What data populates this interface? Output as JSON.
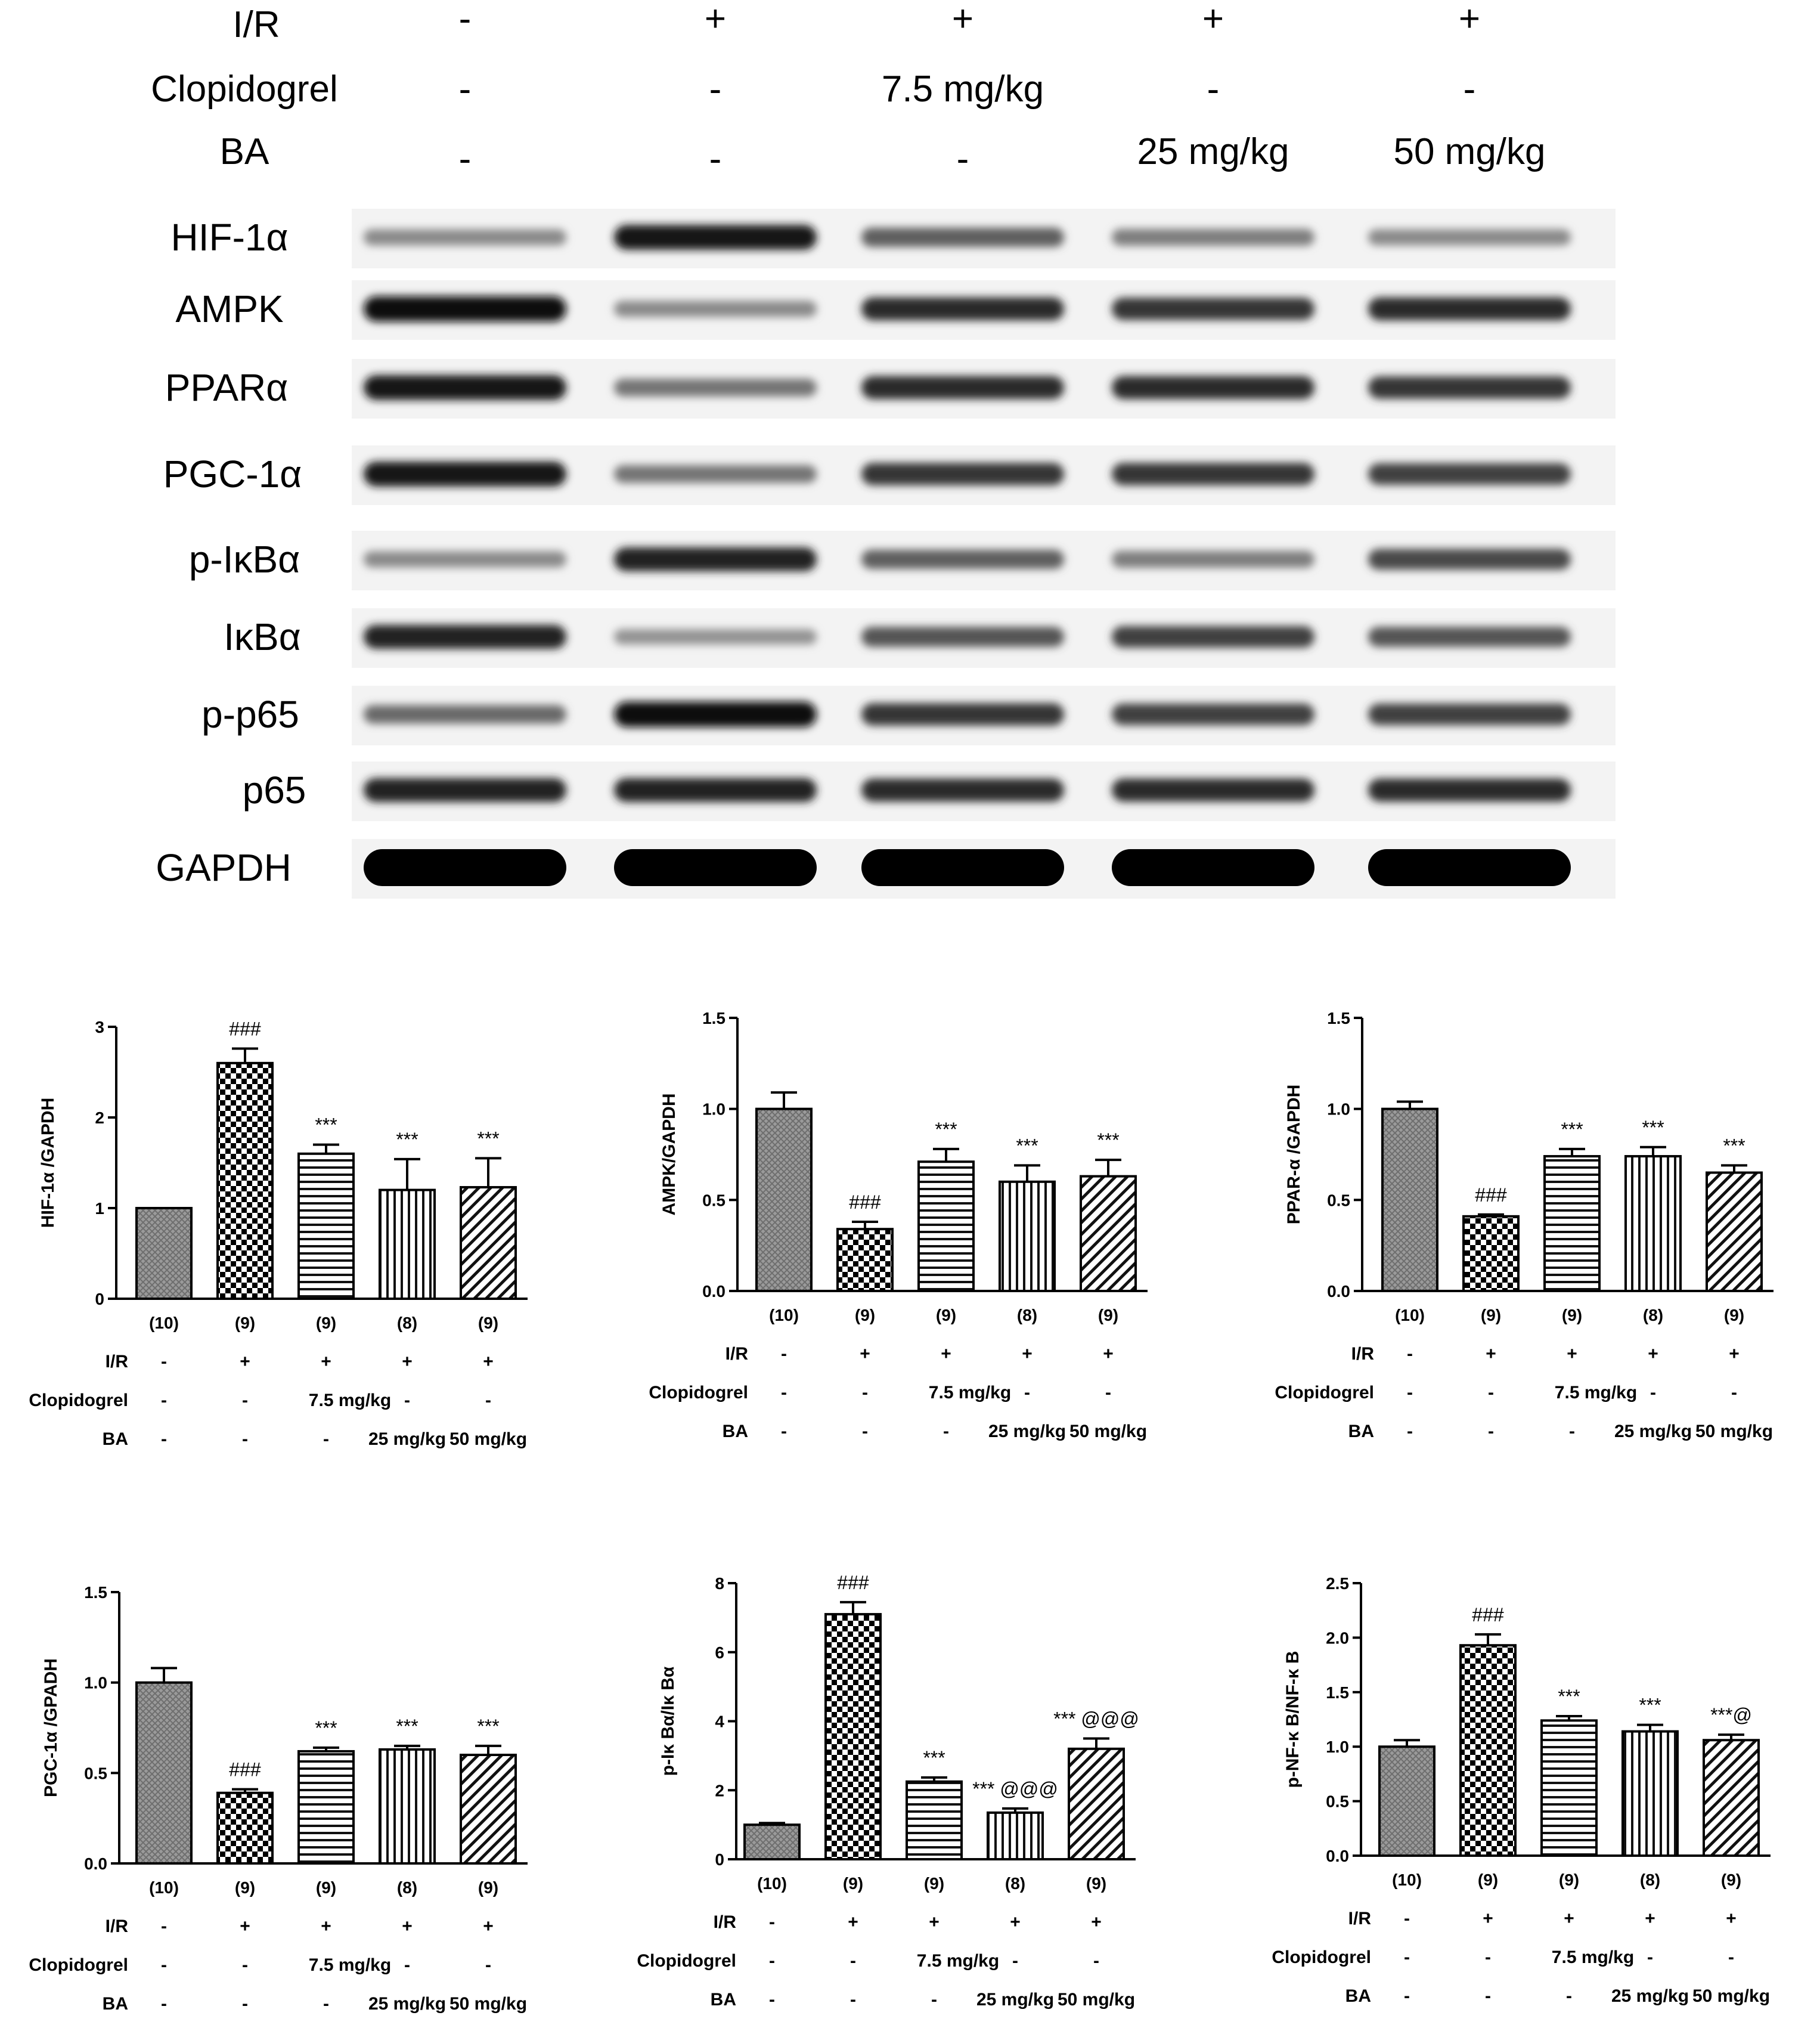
{
  "blot": {
    "header_rows": [
      {
        "label": "I/R",
        "values": [
          "-",
          "+",
          "+",
          "+",
          "+"
        ]
      },
      {
        "label": "Clopidogrel",
        "values": [
          "-",
          "-",
          "7.5 mg/kg",
          "-",
          "-"
        ]
      },
      {
        "label": "BA",
        "values": [
          "-",
          "-",
          "-",
          "25 mg/kg",
          "50 mg/kg"
        ]
      }
    ],
    "bands": [
      {
        "label": "HIF-1α",
        "intensity": [
          0.35,
          0.9,
          0.55,
          0.4,
          0.35
        ]
      },
      {
        "label": "AMPK",
        "intensity": [
          0.95,
          0.35,
          0.8,
          0.75,
          0.8
        ]
      },
      {
        "label": "PPARα",
        "intensity": [
          0.9,
          0.45,
          0.8,
          0.8,
          0.75
        ]
      },
      {
        "label": "PGC-1α",
        "intensity": [
          0.9,
          0.45,
          0.75,
          0.75,
          0.7
        ]
      },
      {
        "label": "p-IκBα",
        "intensity": [
          0.35,
          0.85,
          0.55,
          0.4,
          0.65
        ]
      },
      {
        "label": "IκBα",
        "intensity": [
          0.85,
          0.3,
          0.6,
          0.7,
          0.6
        ]
      },
      {
        "label": "p-p65",
        "intensity": [
          0.5,
          0.95,
          0.75,
          0.7,
          0.7
        ]
      },
      {
        "label": "p65",
        "intensity": [
          0.85,
          0.85,
          0.8,
          0.8,
          0.8
        ]
      },
      {
        "label": "GAPDH",
        "intensity": [
          1.0,
          1.0,
          1.0,
          1.0,
          1.0
        ]
      }
    ]
  },
  "chart_data": [
    {
      "type": "bar",
      "ylabel": "HIF-1α /GAPDH",
      "ylim": [
        0,
        3
      ],
      "yticks": [
        "0",
        "1",
        "2",
        "3"
      ],
      "categories": [
        "(10)",
        "(9)",
        "(9)",
        "(8)",
        "(9)"
      ],
      "values": [
        1.0,
        2.6,
        1.6,
        1.2,
        1.23
      ],
      "errors": [
        0.0,
        0.16,
        0.1,
        0.34,
        0.32
      ],
      "annotations": [
        "",
        "###",
        "***",
        "***",
        "***"
      ],
      "conditions": [
        {
          "label": "I/R",
          "values": [
            "-",
            "+",
            "+",
            "+",
            "+"
          ]
        },
        {
          "label": "Clopidogrel",
          "values": [
            "-",
            "-",
            "7.5 mg/kg",
            "-",
            "-"
          ]
        },
        {
          "label": "BA",
          "values": [
            "-",
            "-",
            "-",
            "25 mg/kg",
            "50 mg/kg"
          ]
        }
      ]
    },
    {
      "type": "bar",
      "ylabel": "AMPK/GAPDH",
      "ylim": [
        0,
        1.5
      ],
      "yticks": [
        "0.0",
        "0.5",
        "1.0",
        "1.5"
      ],
      "categories": [
        "(10)",
        "(9)",
        "(9)",
        "(8)",
        "(9)"
      ],
      "values": [
        1.0,
        0.34,
        0.71,
        0.6,
        0.63
      ],
      "errors": [
        0.09,
        0.04,
        0.07,
        0.09,
        0.09
      ],
      "annotations": [
        "",
        "###",
        "***",
        "***",
        "***"
      ],
      "conditions": [
        {
          "label": "I/R",
          "values": [
            "-",
            "+",
            "+",
            "+",
            "+"
          ]
        },
        {
          "label": "Clopidogrel",
          "values": [
            "-",
            "-",
            "7.5 mg/kg",
            "-",
            "-"
          ]
        },
        {
          "label": "BA",
          "values": [
            "-",
            "-",
            "-",
            "25 mg/kg",
            "50 mg/kg"
          ]
        }
      ]
    },
    {
      "type": "bar",
      "ylabel": "PPAR-α /GAPDH",
      "ylim": [
        0,
        1.5
      ],
      "yticks": [
        "0.0",
        "0.5",
        "1.0",
        "1.5"
      ],
      "categories": [
        "(10)",
        "(9)",
        "(9)",
        "(8)",
        "(9)"
      ],
      "values": [
        1.0,
        0.41,
        0.74,
        0.74,
        0.65
      ],
      "errors": [
        0.04,
        0.01,
        0.04,
        0.05,
        0.04
      ],
      "annotations": [
        "",
        "###",
        "***",
        "***",
        "***"
      ],
      "conditions": [
        {
          "label": "I/R",
          "values": [
            "-",
            "+",
            "+",
            "+",
            "+"
          ]
        },
        {
          "label": "Clopidogrel",
          "values": [
            "-",
            "-",
            "7.5 mg/kg",
            "-",
            "-"
          ]
        },
        {
          "label": "BA",
          "values": [
            "-",
            "-",
            "-",
            "25 mg/kg",
            "50 mg/kg"
          ]
        }
      ]
    },
    {
      "type": "bar",
      "ylabel": "PGC-1α /GPADH",
      "ylim": [
        0,
        1.5
      ],
      "yticks": [
        "0.0",
        "0.5",
        "1.0",
        "1.5"
      ],
      "categories": [
        "(10)",
        "(9)",
        "(9)",
        "(8)",
        "(9)"
      ],
      "values": [
        1.0,
        0.39,
        0.62,
        0.63,
        0.6
      ],
      "errors": [
        0.08,
        0.02,
        0.02,
        0.02,
        0.05
      ],
      "annotations": [
        "",
        "###",
        "***",
        "***",
        "***"
      ],
      "conditions": [
        {
          "label": "I/R",
          "values": [
            "-",
            "+",
            "+",
            "+",
            "+"
          ]
        },
        {
          "label": "Clopidogrel",
          "values": [
            "-",
            "-",
            "7.5 mg/kg",
            "-",
            "-"
          ]
        },
        {
          "label": "BA",
          "values": [
            "-",
            "-",
            "-",
            "25 mg/kg",
            "50 mg/kg"
          ]
        }
      ]
    },
    {
      "type": "bar",
      "ylabel": "p-Iκ Bα/Iκ Bα",
      "ylim": [
        0,
        8
      ],
      "yticks": [
        "0",
        "2",
        "4",
        "6",
        "8"
      ],
      "categories": [
        "(10)",
        "(9)",
        "(9)",
        "(8)",
        "(9)"
      ],
      "values": [
        1.0,
        7.1,
        2.25,
        1.35,
        3.2
      ],
      "errors": [
        0.05,
        0.35,
        0.12,
        0.12,
        0.3
      ],
      "annotations": [
        "",
        "###",
        "***",
        "*** @@@",
        "*** @@@"
      ],
      "conditions": [
        {
          "label": "I/R",
          "values": [
            "-",
            "+",
            "+",
            "+",
            "+"
          ]
        },
        {
          "label": "Clopidogrel",
          "values": [
            "-",
            "-",
            "7.5 mg/kg",
            "-",
            "-"
          ]
        },
        {
          "label": "BA",
          "values": [
            "-",
            "-",
            "-",
            "25 mg/kg",
            "50 mg/kg"
          ]
        }
      ]
    },
    {
      "type": "bar",
      "ylabel": "p-NF-κ B/NF-κ B",
      "ylim": [
        0,
        2.5
      ],
      "yticks": [
        "0.0",
        "0.5",
        "1.0",
        "1.5",
        "2.0",
        "2.5"
      ],
      "categories": [
        "(10)",
        "(9)",
        "(9)",
        "(8)",
        "(9)"
      ],
      "values": [
        1.0,
        1.93,
        1.24,
        1.14,
        1.06
      ],
      "errors": [
        0.06,
        0.1,
        0.04,
        0.06,
        0.05
      ],
      "annotations": [
        "",
        "###",
        "***",
        "***",
        "***@"
      ],
      "conditions": [
        {
          "label": "I/R",
          "values": [
            "-",
            "+",
            "+",
            "+",
            "+"
          ]
        },
        {
          "label": "Clopidogrel",
          "values": [
            "-",
            "-",
            "7.5 mg/kg",
            "-",
            "-"
          ]
        },
        {
          "label": "BA",
          "values": [
            "-",
            "-",
            "-",
            "25 mg/kg",
            "50 mg/kg"
          ]
        }
      ]
    }
  ]
}
